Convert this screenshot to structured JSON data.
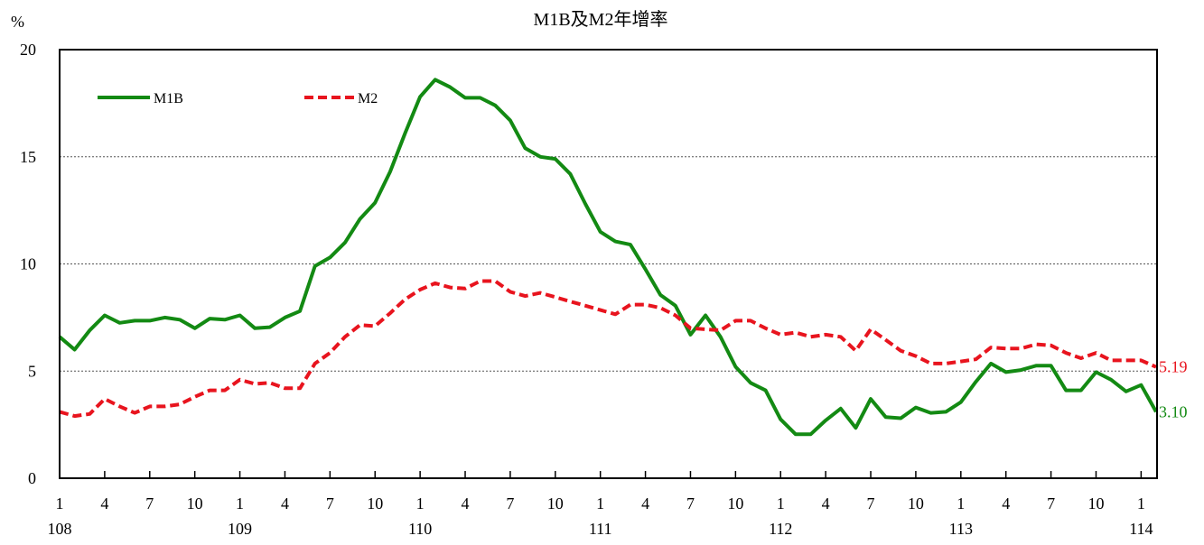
{
  "chart_data": {
    "type": "line",
    "title": "M1B及M2年增率",
    "ylabel": "%",
    "xlabel": "",
    "ylim": [
      0,
      20
    ],
    "yticks": [
      0,
      5,
      10,
      15,
      20
    ],
    "grid": "horizontal dotted at 5, 10, 15",
    "legend_position": "top-left",
    "x_month_labels": [
      "1",
      "4",
      "7",
      "10",
      "1",
      "4",
      "7",
      "10",
      "1",
      "4",
      "7",
      "10",
      "1",
      "4",
      "7",
      "10",
      "1",
      "4",
      "7",
      "10",
      "1",
      "4",
      "7",
      "10",
      "1"
    ],
    "x_year_labels": [
      "108",
      "109",
      "110",
      "111",
      "112",
      "113",
      "114"
    ],
    "x": [
      "108/01",
      "108/02",
      "108/03",
      "108/04",
      "108/05",
      "108/06",
      "108/07",
      "108/08",
      "108/09",
      "108/10",
      "108/11",
      "108/12",
      "109/01",
      "109/02",
      "109/03",
      "109/04",
      "109/05",
      "109/06",
      "109/07",
      "109/08",
      "109/09",
      "109/10",
      "109/11",
      "109/12",
      "110/01",
      "110/02",
      "110/03",
      "110/04",
      "110/05",
      "110/06",
      "110/07",
      "110/08",
      "110/09",
      "110/10",
      "110/11",
      "110/12",
      "111/01",
      "111/02",
      "111/03",
      "111/04",
      "111/05",
      "111/06",
      "111/07",
      "111/08",
      "111/09",
      "111/10",
      "111/11",
      "111/12",
      "112/01",
      "112/02",
      "112/03",
      "112/04",
      "112/05",
      "112/06",
      "112/07",
      "112/08",
      "112/09",
      "112/10",
      "112/11",
      "112/12",
      "113/01",
      "113/02",
      "113/03",
      "113/04",
      "113/05",
      "113/06",
      "113/07",
      "113/08",
      "113/09",
      "113/10",
      "113/11",
      "113/12",
      "114/01",
      "114/02"
    ],
    "series": [
      {
        "name": "M1B",
        "color": "#138a13",
        "style": "solid",
        "end_label": "3.10",
        "values": [
          6.6,
          6.0,
          6.9,
          7.6,
          7.25,
          7.35,
          7.35,
          7.5,
          7.4,
          7.0,
          7.45,
          7.4,
          7.6,
          7.0,
          7.05,
          7.5,
          7.8,
          9.9,
          10.3,
          11.0,
          12.1,
          12.85,
          14.3,
          16.1,
          17.8,
          18.6,
          18.25,
          17.75,
          17.75,
          17.4,
          16.7,
          15.4,
          15.0,
          14.9,
          14.2,
          12.8,
          11.5,
          11.05,
          10.9,
          9.75,
          8.55,
          8.05,
          6.7,
          7.6,
          6.6,
          5.2,
          4.45,
          4.1,
          2.75,
          2.05,
          2.05,
          2.7,
          3.25,
          2.35,
          3.7,
          2.85,
          2.8,
          3.3,
          3.05,
          3.1,
          3.55,
          4.5,
          5.35,
          4.95,
          5.05,
          5.25,
          5.25,
          4.1,
          4.1,
          4.95,
          4.6,
          4.05,
          4.35,
          3.1
        ]
      },
      {
        "name": "M2",
        "color": "#e8141e",
        "style": "dashed",
        "end_label": "5.19",
        "values": [
          3.1,
          2.9,
          3.0,
          3.7,
          3.35,
          3.05,
          3.35,
          3.35,
          3.45,
          3.8,
          4.1,
          4.1,
          4.6,
          4.4,
          4.45,
          4.2,
          4.2,
          5.35,
          5.85,
          6.6,
          7.15,
          7.1,
          7.7,
          8.35,
          8.8,
          9.1,
          8.9,
          8.85,
          9.2,
          9.2,
          8.7,
          8.5,
          8.65,
          8.45,
          8.25,
          8.05,
          7.85,
          7.65,
          8.1,
          8.1,
          7.95,
          7.6,
          7.0,
          6.95,
          6.9,
          7.35,
          7.35,
          7.0,
          6.7,
          6.8,
          6.6,
          6.7,
          6.6,
          5.95,
          6.95,
          6.45,
          5.95,
          5.7,
          5.35,
          5.35,
          5.45,
          5.55,
          6.1,
          6.05,
          6.05,
          6.25,
          6.2,
          5.85,
          5.6,
          5.85,
          5.5,
          5.5,
          5.5,
          5.19
        ]
      }
    ]
  }
}
